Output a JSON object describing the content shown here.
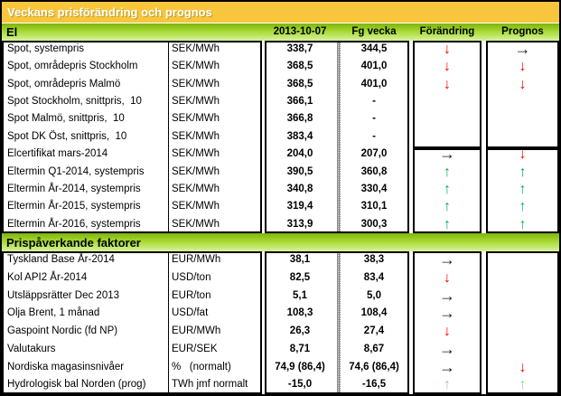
{
  "title": "Veckans prisförändring och prognos",
  "columns": {
    "date": "2013-10-07",
    "previous": "Fg vecka",
    "change": "Förändring",
    "forecast": "Prognos"
  },
  "colors": {
    "title_bar_bg": "#F8C63C",
    "title_text": "#FFFFFF",
    "section_bar_green_top": "#7EB30E",
    "section_bar_green_mid": "#A6DA31",
    "section_bar_green_bottom": "#D8F29F",
    "border_black": "#000000",
    "arrow_red": "#FF0000",
    "arrow_green": "#00B44B",
    "arrow_lightgreen": "#8CD98C",
    "arrow_black": "#1A1A1A"
  },
  "sections": [
    {
      "name": "El",
      "rows": [
        {
          "label": "Spot, systempris",
          "unit": "SEK/MWh",
          "current": "338,7",
          "previous": "344,5",
          "change": "down:red",
          "forecast": "right:black"
        },
        {
          "label": "Spot, områdepris Stockholm",
          "unit": "SEK/MWh",
          "current": "368,5",
          "previous": "401,0",
          "change": "down:red",
          "forecast": "down:red"
        },
        {
          "label": "Spot, områdepris Malmö",
          "unit": "SEK/MWh",
          "current": "368,5",
          "previous": "401,0",
          "change": "down:red",
          "forecast": "down:red"
        },
        {
          "label": "Spot Stockholm, snittpris,  10",
          "unit": "SEK/MWh",
          "current": "366,1",
          "previous": "-",
          "change": "",
          "forecast": ""
        },
        {
          "label": "Spot Malmö, snittpris,  10",
          "unit": "SEK/MWh",
          "current": "366,8",
          "previous": "-",
          "change": "",
          "forecast": ""
        },
        {
          "label": "Spot DK Öst, snittpris,  10",
          "unit": "SEK/MWh",
          "current": "383,4",
          "previous": "-",
          "change": "",
          "forecast": ""
        },
        {
          "label": "Elcertifikat mars-2014",
          "unit": "SEK/MWh",
          "current": "204,0",
          "previous": "207,0",
          "change": "right:black",
          "forecast": "down:red"
        },
        {
          "label": "Eltermin Q1-2014, systempris",
          "unit": "SEK/MWh",
          "current": "390,5",
          "previous": "360,8",
          "change": "up:green",
          "forecast": "up:green"
        },
        {
          "label": "Eltermin År-2014, systempris",
          "unit": "SEK/MWh",
          "current": "340,8",
          "previous": "330,4",
          "change": "up:green",
          "forecast": "up:green"
        },
        {
          "label": "Eltermin År-2015, systempris",
          "unit": "SEK/MWh",
          "current": "319,4",
          "previous": "310,1",
          "change": "up:green",
          "forecast": "up:green"
        },
        {
          "label": "Eltermin År-2016, systempris",
          "unit": "SEK/MWh",
          "current": "313,9",
          "previous": "300,3",
          "change": "up:green",
          "forecast": "up:green"
        }
      ]
    },
    {
      "name": "Prispåverkande faktorer",
      "rows": [
        {
          "label": "Tyskland Base År-2014",
          "unit": "EUR/MWh",
          "current": "38,1",
          "previous": "38,3",
          "change": "right:black",
          "forecast": ""
        },
        {
          "label": "Kol API2 År-2014",
          "unit": "USD/ton",
          "current": "82,5",
          "previous": "83,4",
          "change": "down:red",
          "forecast": ""
        },
        {
          "label": "Utsläppsrätter Dec 2013",
          "unit": "EUR/ton",
          "current": "5,1",
          "previous": "5,0",
          "change": "right:black",
          "forecast": ""
        },
        {
          "label": "Olja Brent, 1 månad",
          "unit": "USD/fat",
          "current": "108,3",
          "previous": "108,4",
          "change": "right:black",
          "forecast": ""
        },
        {
          "label": "Gaspoint Nordic (fd NP)",
          "unit": "EUR/MWh",
          "current": "26,3",
          "previous": "27,4",
          "change": "down:red",
          "forecast": ""
        },
        {
          "label": "Valutakurs",
          "unit": "EUR/SEK",
          "current": "8,71",
          "previous": "8,67",
          "change": "right:black",
          "forecast": ""
        },
        {
          "label": "Nordiska magasinsnivåer",
          "unit": "%   (normalt)",
          "current": "74,9 (86,4)",
          "previous": "74,6 (86,4)",
          "change": "right:black",
          "forecast": "down:red"
        },
        {
          "label": "Hydrologisk bal Norden (prog)",
          "unit": "TWh jmf normalt",
          "current": "-15,0",
          "previous": "-16,5",
          "change": "up:lightgreen",
          "forecast": "up:lightgreen"
        }
      ]
    }
  ]
}
